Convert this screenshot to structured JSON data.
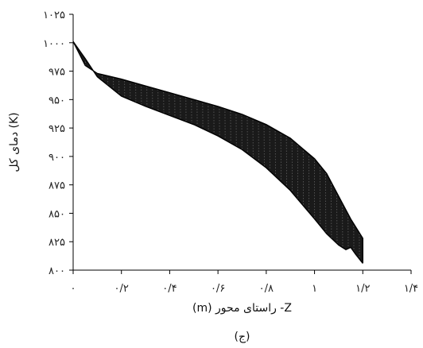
{
  "chart_data": {
    "type": "line",
    "xlabel": "(m)  راستای محور  -Z",
    "ylabel": "دمای کل (K)",
    "caption": "(ج)",
    "xlim": [
      0,
      1.4
    ],
    "ylim": [
      800,
      1025
    ],
    "x_ticks": [
      {
        "value": 0,
        "label": "۰"
      },
      {
        "value": 0.2,
        "label": "۰/۲"
      },
      {
        "value": 0.4,
        "label": "۰/۴"
      },
      {
        "value": 0.6,
        "label": "۰/۶"
      },
      {
        "value": 0.8,
        "label": "۰/۸"
      },
      {
        "value": 1.0,
        "label": "۱"
      },
      {
        "value": 1.2,
        "label": "۱/۲"
      },
      {
        "value": 1.4,
        "label": "۱/۴"
      }
    ],
    "y_ticks": [
      {
        "value": 800,
        "label": "۸۰۰"
      },
      {
        "value": 825,
        "label": "۸۲۵"
      },
      {
        "value": 850,
        "label": "۸۵۰"
      },
      {
        "value": 875,
        "label": "۸۷۵"
      },
      {
        "value": 900,
        "label": "۹۰۰"
      },
      {
        "value": 925,
        "label": "۹۲۵"
      },
      {
        "value": 950,
        "label": "۹۵۰"
      },
      {
        "value": 975,
        "label": "۹۷۵"
      },
      {
        "value": 1000,
        "label": "۱۰۰۰"
      },
      {
        "value": 1025,
        "label": "۱۰۲۵"
      }
    ],
    "grid": false,
    "envelope": {
      "upper": {
        "x": [
          0.0,
          0.05,
          0.1,
          0.2,
          0.3,
          0.4,
          0.5,
          0.6,
          0.7,
          0.8,
          0.9,
          1.0,
          1.05,
          1.1,
          1.15,
          1.2
        ],
        "y": [
          1001,
          980,
          973,
          968,
          962,
          956,
          950,
          944,
          937,
          928,
          916,
          898,
          885,
          865,
          845,
          828
        ]
      },
      "lower": {
        "x": [
          0.0,
          0.05,
          0.1,
          0.2,
          0.3,
          0.4,
          0.5,
          0.6,
          0.7,
          0.8,
          0.9,
          1.0,
          1.05,
          1.1,
          1.13,
          1.15,
          1.17,
          1.2
        ],
        "y": [
          1001,
          986,
          970,
          953,
          944,
          936,
          928,
          918,
          906,
          890,
          870,
          845,
          832,
          822,
          818,
          820,
          814,
          806
        ]
      }
    }
  }
}
